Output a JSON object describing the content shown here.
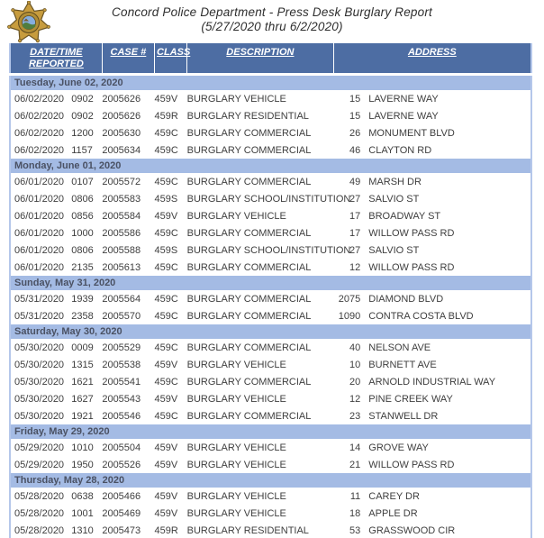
{
  "header": {
    "title_line1": "Concord Police Department - Press Desk Burglary Report",
    "title_line2": "(5/27/2020 thru 6/2/2020)",
    "badge_icon": "concord-police-star-badge"
  },
  "colors": {
    "table_header_bg": "#4d6da3",
    "table_header_text": "#ffffff",
    "section_band_bg": "#a4bbe4",
    "section_band_text": "#4a5163",
    "data_text": "#3e3e3e",
    "table_edge_border": "#b5c7ea",
    "badge_gold": "#c79c3e"
  },
  "table": {
    "columns": [
      "DATE/TIME REPORTED",
      "CASE #",
      "CLASS",
      "DESCRIPTION",
      "ADDRESS"
    ],
    "sections": [
      {
        "day": "Tuesday, June 02, 2020",
        "rows": [
          {
            "date": "06/02/2020",
            "time": "0902",
            "case": "2005626",
            "class": "459V",
            "description": "BURGLARY VEHICLE",
            "block": "15",
            "street": "LAVERNE WAY"
          },
          {
            "date": "06/02/2020",
            "time": "0902",
            "case": "2005626",
            "class": "459R",
            "description": "BURGLARY RESIDENTIAL",
            "block": "15",
            "street": "LAVERNE WAY"
          },
          {
            "date": "06/02/2020",
            "time": "1200",
            "case": "2005630",
            "class": "459C",
            "description": "BURGLARY COMMERCIAL",
            "block": "26",
            "street": "MONUMENT BLVD"
          },
          {
            "date": "06/02/2020",
            "time": "1157",
            "case": "2005634",
            "class": "459C",
            "description": "BURGLARY COMMERCIAL",
            "block": "46",
            "street": "CLAYTON RD"
          }
        ]
      },
      {
        "day": "Monday, June 01, 2020",
        "rows": [
          {
            "date": "06/01/2020",
            "time": "0107",
            "case": "2005572",
            "class": "459C",
            "description": "BURGLARY COMMERCIAL",
            "block": "49",
            "street": "MARSH DR"
          },
          {
            "date": "06/01/2020",
            "time": "0806",
            "case": "2005583",
            "class": "459S",
            "description": "BURGLARY SCHOOL/INSTITUTION",
            "block": "27",
            "street": "SALVIO ST"
          },
          {
            "date": "06/01/2020",
            "time": "0856",
            "case": "2005584",
            "class": "459V",
            "description": "BURGLARY VEHICLE",
            "block": "17",
            "street": "BROADWAY ST"
          },
          {
            "date": "06/01/2020",
            "time": "1000",
            "case": "2005586",
            "class": "459C",
            "description": "BURGLARY COMMERCIAL",
            "block": "17",
            "street": "WILLOW PASS RD"
          },
          {
            "date": "06/01/2020",
            "time": "0806",
            "case": "2005588",
            "class": "459S",
            "description": "BURGLARY SCHOOL/INSTITUTION",
            "block": "27",
            "street": "SALVIO ST"
          },
          {
            "date": "06/01/2020",
            "time": "2135",
            "case": "2005613",
            "class": "459C",
            "description": "BURGLARY COMMERCIAL",
            "block": "12",
            "street": "WILLOW PASS RD"
          }
        ]
      },
      {
        "day": "Sunday, May 31, 2020",
        "rows": [
          {
            "date": "05/31/2020",
            "time": "1939",
            "case": "2005564",
            "class": "459C",
            "description": "BURGLARY COMMERCIAL",
            "block": "2075",
            "street": "DIAMOND BLVD"
          },
          {
            "date": "05/31/2020",
            "time": "2358",
            "case": "2005570",
            "class": "459C",
            "description": "BURGLARY COMMERCIAL",
            "block": "1090",
            "street": "CONTRA COSTA BLVD"
          }
        ]
      },
      {
        "day": "Saturday, May 30, 2020",
        "rows": [
          {
            "date": "05/30/2020",
            "time": "0009",
            "case": "2005529",
            "class": "459C",
            "description": "BURGLARY COMMERCIAL",
            "block": "40",
            "street": "NELSON AVE"
          },
          {
            "date": "05/30/2020",
            "time": "1315",
            "case": "2005538",
            "class": "459V",
            "description": "BURGLARY VEHICLE",
            "block": "10",
            "street": "BURNETT AVE"
          },
          {
            "date": "05/30/2020",
            "time": "1621",
            "case": "2005541",
            "class": "459C",
            "description": "BURGLARY COMMERCIAL",
            "block": "20",
            "street": "ARNOLD INDUSTRIAL WAY"
          },
          {
            "date": "05/30/2020",
            "time": "1627",
            "case": "2005543",
            "class": "459V",
            "description": "BURGLARY VEHICLE",
            "block": "12",
            "street": "PINE CREEK WAY"
          },
          {
            "date": "05/30/2020",
            "time": "1921",
            "case": "2005546",
            "class": "459C",
            "description": "BURGLARY COMMERCIAL",
            "block": "23",
            "street": "STANWELL DR"
          }
        ]
      },
      {
        "day": "Friday, May 29, 2020",
        "rows": [
          {
            "date": "05/29/2020",
            "time": "1010",
            "case": "2005504",
            "class": "459V",
            "description": "BURGLARY VEHICLE",
            "block": "14",
            "street": "GROVE WAY"
          },
          {
            "date": "05/29/2020",
            "time": "1950",
            "case": "2005526",
            "class": "459V",
            "description": "BURGLARY VEHICLE",
            "block": "21",
            "street": "WILLOW PASS RD"
          }
        ]
      },
      {
        "day": "Thursday, May 28, 2020",
        "rows": [
          {
            "date": "05/28/2020",
            "time": "0638",
            "case": "2005466",
            "class": "459V",
            "description": "BURGLARY VEHICLE",
            "block": "11",
            "street": "CAREY DR"
          },
          {
            "date": "05/28/2020",
            "time": "1001",
            "case": "2005469",
            "class": "459V",
            "description": "BURGLARY VEHICLE",
            "block": "18",
            "street": "APPLE DR"
          },
          {
            "date": "05/28/2020",
            "time": "1310",
            "case": "2005473",
            "class": "459R",
            "description": "BURGLARY RESIDENTIAL",
            "block": "53",
            "street": "GRASSWOOD CIR"
          }
        ]
      }
    ]
  }
}
